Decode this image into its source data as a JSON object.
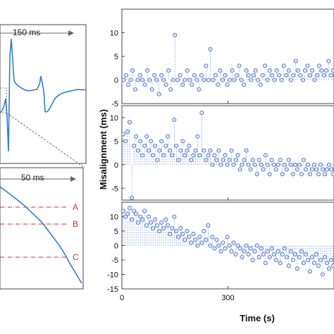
{
  "colors": {
    "waveform": "#2f7fd0",
    "marker": "#4a73c8",
    "marker_fill": "#dfe8f7",
    "reference": "#d32f2f",
    "axes": "#444444",
    "annotation": "#555555"
  },
  "left_panels": {
    "top_annotation": "150 ms",
    "bottom_annotation": "50 ms",
    "reference_labels": [
      "A",
      "B",
      "C"
    ]
  },
  "chart_data": [
    {
      "type": "scatter",
      "xlim": [
        0,
        600
      ],
      "ylim": [
        -5,
        15
      ],
      "yticks": [
        -5,
        0,
        5,
        10
      ],
      "xticks": [
        0,
        300
      ],
      "stems": true,
      "x": [
        5,
        12,
        18,
        25,
        30,
        38,
        45,
        52,
        58,
        65,
        72,
        78,
        85,
        92,
        98,
        105,
        112,
        118,
        125,
        132,
        138,
        145,
        150,
        158,
        165,
        172,
        178,
        185,
        192,
        198,
        205,
        212,
        218,
        225,
        232,
        238,
        245,
        250,
        258,
        265,
        272,
        278,
        285,
        292,
        298,
        305,
        312,
        318,
        325,
        332,
        338,
        345,
        352,
        358,
        365,
        372,
        378,
        385,
        392,
        398,
        405,
        412,
        418,
        425,
        432,
        438,
        445,
        452,
        458,
        465,
        472,
        478,
        485,
        492,
        498,
        505,
        512,
        518,
        525,
        532,
        538,
        545,
        552,
        558,
        565,
        572,
        578,
        585,
        592,
        598
      ],
      "y": [
        0,
        1,
        -1,
        0,
        2,
        -2,
        0,
        1,
        0,
        -1,
        2,
        0,
        -2,
        1,
        0,
        -3,
        1,
        0,
        -1,
        2,
        -2,
        0,
        9.5,
        0,
        1,
        -1,
        0,
        2,
        0,
        -1,
        1,
        0,
        -2,
        1,
        0,
        3,
        0,
        6.5,
        0,
        1,
        -1,
        2,
        0,
        1,
        -1,
        0,
        2,
        0,
        1,
        3,
        0,
        -1,
        2,
        1,
        0,
        1,
        2,
        0,
        -1,
        1,
        3,
        0,
        2,
        1,
        0,
        2,
        1,
        0,
        3,
        1,
        2,
        0,
        1,
        4,
        2,
        1,
        0,
        2,
        3,
        1,
        2,
        0,
        1,
        3,
        2,
        1,
        2,
        4,
        1,
        2
      ]
    },
    {
      "type": "scatter",
      "xlim": [
        0,
        600
      ],
      "ylim": [
        -7.5,
        12.5
      ],
      "yticks": [
        -5,
        0,
        5,
        10
      ],
      "xticks": [
        0,
        300
      ],
      "stems": true,
      "x": [
        4,
        10,
        16,
        22,
        28,
        34,
        40,
        46,
        52,
        58,
        64,
        70,
        76,
        82,
        88,
        94,
        100,
        106,
        112,
        118,
        124,
        130,
        136,
        142,
        148,
        154,
        160,
        166,
        172,
        178,
        184,
        190,
        196,
        202,
        208,
        214,
        220,
        226,
        232,
        238,
        244,
        250,
        256,
        262,
        268,
        274,
        280,
        286,
        292,
        298,
        304,
        310,
        316,
        322,
        328,
        334,
        340,
        346,
        352,
        358,
        364,
        370,
        376,
        382,
        388,
        394,
        400,
        406,
        412,
        418,
        424,
        430,
        436,
        442,
        448,
        454,
        460,
        466,
        472,
        478,
        484,
        490,
        496,
        502,
        508,
        514,
        520,
        526,
        532,
        538,
        544,
        550,
        556,
        562,
        568,
        574,
        580,
        586,
        592,
        598
      ],
      "y": [
        6.5,
        5,
        7,
        9,
        -7,
        4,
        6,
        3,
        5,
        2,
        4,
        6,
        3,
        5,
        2,
        4,
        1,
        3,
        5,
        2,
        4,
        6,
        3,
        2,
        9.5,
        4,
        1,
        3,
        5,
        2,
        3,
        4,
        1,
        2,
        3,
        6,
        2,
        11,
        3,
        1,
        2,
        3,
        0,
        2,
        1,
        3,
        0,
        1,
        2,
        0,
        1,
        3,
        0,
        1,
        2,
        -1,
        0,
        1,
        3,
        0,
        -1,
        1,
        0,
        -2,
        1,
        0,
        -1,
        2,
        0,
        -2,
        1,
        0,
        -1,
        0,
        1,
        -2,
        0,
        -1,
        1,
        0,
        -2,
        0,
        -1,
        0,
        -2,
        1,
        -1,
        0,
        -2,
        -1,
        0,
        -1,
        -2,
        0,
        -1,
        -2,
        -1,
        0,
        -1,
        -2
      ]
    },
    {
      "type": "scatter",
      "xlim": [
        0,
        600
      ],
      "ylim": [
        -15,
        15
      ],
      "yticks": [
        -15,
        -10,
        -5,
        0,
        5,
        10
      ],
      "xticks": [
        0,
        300
      ],
      "xlabel": "Time (s)",
      "stems": true,
      "x": [
        4,
        10,
        16,
        22,
        28,
        34,
        40,
        46,
        52,
        58,
        64,
        70,
        76,
        82,
        88,
        94,
        100,
        106,
        112,
        118,
        124,
        130,
        136,
        142,
        148,
        154,
        160,
        166,
        172,
        178,
        184,
        190,
        196,
        202,
        208,
        214,
        220,
        226,
        232,
        238,
        244,
        250,
        256,
        262,
        268,
        274,
        280,
        286,
        292,
        298,
        304,
        310,
        316,
        322,
        328,
        334,
        340,
        346,
        352,
        358,
        364,
        370,
        376,
        382,
        388,
        394,
        400,
        406,
        412,
        418,
        424,
        430,
        436,
        442,
        448,
        454,
        460,
        466,
        472,
        478,
        484,
        490,
        496,
        502,
        508,
        514,
        520,
        526,
        532,
        538,
        544,
        550,
        556,
        562,
        568,
        574,
        580,
        586,
        592,
        598
      ],
      "y": [
        12,
        10,
        11,
        13,
        9,
        12,
        11,
        8,
        10,
        9,
        12,
        7,
        10,
        8,
        6,
        9,
        7,
        5,
        8,
        6,
        9,
        7,
        4,
        6,
        10,
        5,
        3,
        6,
        4,
        2,
        5,
        3,
        1,
        4,
        2,
        0,
        3,
        1,
        5,
        2,
        7,
        0,
        3,
        -1,
        2,
        0,
        -2,
        1,
        -1,
        3,
        0,
        -2,
        1,
        -3,
        0,
        -1,
        -4,
        -2,
        0,
        -3,
        -1,
        -5,
        -2,
        0,
        -4,
        -1,
        -3,
        -6,
        -2,
        -4,
        -1,
        -3,
        -5,
        -2,
        -6,
        -3,
        -1,
        -4,
        -7,
        -2,
        -5,
        -3,
        -8,
        -4,
        -2,
        -6,
        -3,
        -5,
        -9,
        -4,
        -6,
        -3,
        -7,
        -5,
        -10,
        -4,
        -6,
        -8,
        -5,
        -7
      ]
    }
  ],
  "shared_axis": {
    "ylabel": "Misalignment (ms)",
    "xlabel": "Time (s)"
  }
}
